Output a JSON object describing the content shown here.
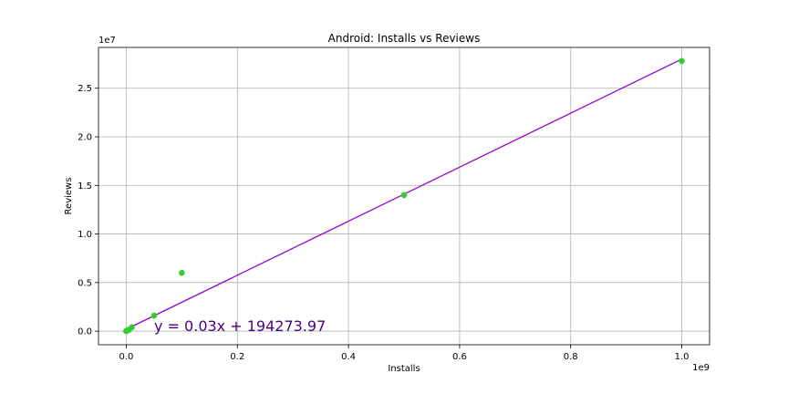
{
  "chart_data": {
    "type": "scatter",
    "title": "Android: Installs vs Reviews",
    "xlabel": "Installs",
    "ylabel": "Reviews",
    "x_offset_label": "1e9",
    "y_offset_label": "1e7",
    "xlim": [
      -50000000,
      1050000000
    ],
    "ylim": [
      -1400000,
      29200000
    ],
    "x_ticks": [
      0,
      200000000,
      400000000,
      600000000,
      800000000,
      1000000000
    ],
    "x_tick_labels": [
      "0.0",
      "0.2",
      "0.4",
      "0.6",
      "0.8",
      "1.0"
    ],
    "y_ticks": [
      0,
      5000000,
      10000000,
      15000000,
      20000000,
      25000000
    ],
    "y_tick_labels": [
      "0.0",
      "0.5",
      "1.0",
      "1.5",
      "2.0",
      "2.5"
    ],
    "grid": true,
    "points": [
      {
        "x": 1000,
        "y": 50
      },
      {
        "x": 100000,
        "y": 3000
      },
      {
        "x": 1000000,
        "y": 30000
      },
      {
        "x": 5000000,
        "y": 150000
      },
      {
        "x": 10000000,
        "y": 400000
      },
      {
        "x": 50000000,
        "y": 1600000
      },
      {
        "x": 100000000,
        "y": 6000000
      },
      {
        "x": 500000000,
        "y": 14000000
      },
      {
        "x": 1000000000,
        "y": 27800000
      }
    ],
    "point_color": "#33cc33",
    "fit_line": {
      "slope": 0.0278,
      "intercept": 194273.97,
      "x_range": [
        0,
        1000000000
      ],
      "color": "#9400d3"
    },
    "equation_text": "y = 0.03x + 194273.97",
    "equation_color": "#4b0082"
  }
}
